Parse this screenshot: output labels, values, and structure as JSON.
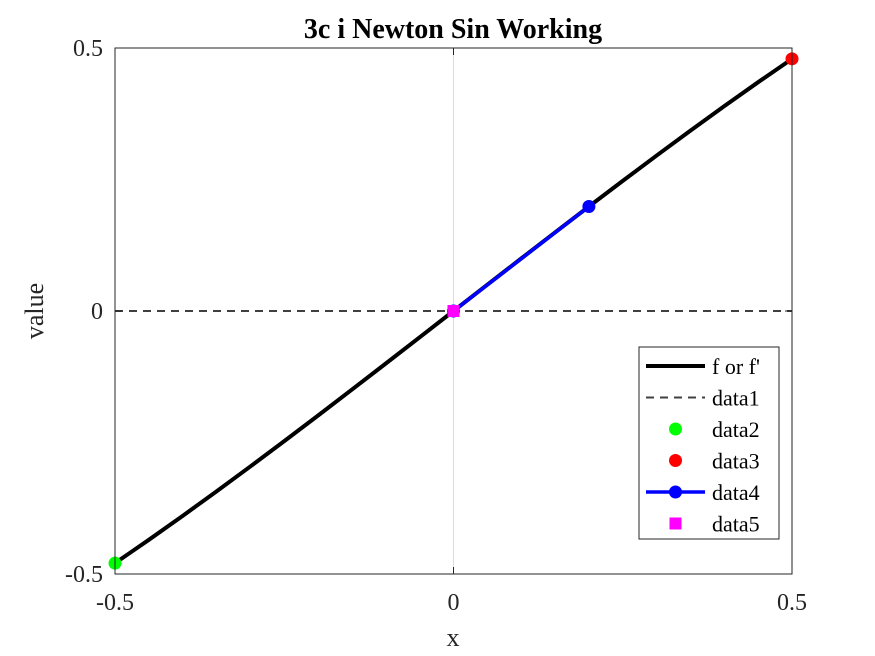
{
  "chart_data": {
    "type": "line",
    "title": "3c i Newton Sin Working",
    "xlabel": "x",
    "ylabel": "value",
    "xlim": [
      -0.5,
      0.5
    ],
    "ylim": [
      -0.5,
      0.5
    ],
    "xticks": [
      -0.5,
      0,
      0.5
    ],
    "xtick_labels": [
      "-0.5",
      "0",
      "0.5"
    ],
    "yticks": [
      -0.5,
      0,
      0.5
    ],
    "ytick_labels": [
      "-0.5",
      "0",
      "0.5"
    ],
    "grid": false,
    "legend_position": "bottom-right",
    "series": [
      {
        "name": "f or f'",
        "kind": "line",
        "style": "solid-thick",
        "color": "#000000",
        "x": [
          -0.5,
          -0.45,
          -0.4,
          -0.35,
          -0.3,
          -0.25,
          -0.2,
          -0.15,
          -0.1,
          -0.05,
          0,
          0.05,
          0.1,
          0.15,
          0.2,
          0.25,
          0.3,
          0.35,
          0.4,
          0.45,
          0.5
        ],
        "y": [
          -0.4794,
          -0.435,
          -0.3894,
          -0.3429,
          -0.2955,
          -0.2474,
          -0.1987,
          -0.1494,
          -0.0998,
          -0.05,
          0,
          0.05,
          0.0998,
          0.1494,
          0.1987,
          0.2474,
          0.2955,
          0.3429,
          0.3894,
          0.435,
          0.4794
        ]
      },
      {
        "name": "data1",
        "kind": "line",
        "style": "dashed",
        "color": "#404040",
        "x": [
          -0.5,
          0.5
        ],
        "y": [
          0,
          0
        ]
      },
      {
        "name": "data2",
        "kind": "marker",
        "marker": "circle",
        "color": "#00ff00",
        "x": [
          -0.5
        ],
        "y": [
          -0.4794
        ]
      },
      {
        "name": "data3",
        "kind": "marker",
        "marker": "circle",
        "color": "#ff0000",
        "x": [
          0.5
        ],
        "y": [
          0.4794
        ]
      },
      {
        "name": "data4",
        "kind": "line-marker",
        "marker": "circle",
        "color": "#0000ff",
        "x": [
          0.2,
          0
        ],
        "y": [
          0.1987,
          0
        ]
      },
      {
        "name": "data5",
        "kind": "marker",
        "marker": "square",
        "color": "#ff00ff",
        "x": [
          0
        ],
        "y": [
          0
        ]
      }
    ]
  }
}
